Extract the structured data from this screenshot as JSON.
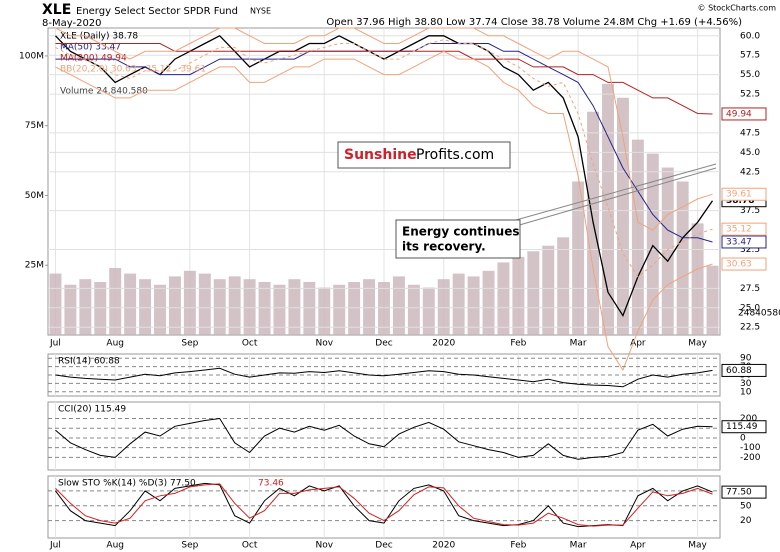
{
  "header": {
    "symbol": "XLE",
    "name": "Energy Select Sector SPDR Fund",
    "exchange": "NYSE",
    "date": "8-May-2020",
    "quote": "Open 37.96 High 38.80 Low 37.74 Close 38.78 Volume 24.8M Chg +1.69 (+4.56%)",
    "copyright": "© StockCharts.com"
  },
  "logo": [
    "Sunshine",
    "Profits.com"
  ],
  "annotation": [
    "Energy continues",
    "its recovery."
  ],
  "chart_data": [
    {
      "type": "line",
      "grid": true,
      "categories": [
        "Jul",
        null,
        null,
        null,
        "Aug",
        null,
        null,
        null,
        null,
        "Sep",
        null,
        null,
        null,
        "Oct",
        null,
        null,
        null,
        null,
        "Nov",
        null,
        null,
        null,
        "Dec",
        null,
        null,
        null,
        "2020",
        null,
        null,
        null,
        null,
        "Feb",
        null,
        null,
        null,
        "Mar",
        null,
        null,
        null,
        "Apr",
        null,
        null,
        null,
        "May",
        null
      ],
      "ylim": [
        21.5,
        61
      ],
      "yticks": [
        {
          "value": 60,
          "label": "60.0"
        },
        57.5,
        {
          "value": 55,
          "label": "55.0"
        },
        52.5,
        47.5,
        {
          "value": 45,
          "label": "45.0"
        },
        42.5,
        37.5,
        32.5,
        27.5,
        {
          "value": 25,
          "label": "25.0"
        },
        22.5
      ],
      "series": [
        {
          "name": "XLE (Daily) 38.78",
          "color": "#000000",
          "values": [
            60,
            58,
            57,
            56,
            54,
            55,
            56,
            55,
            57,
            58,
            59,
            60,
            58,
            56,
            57,
            58,
            58,
            59,
            59,
            60,
            59,
            58,
            57,
            58,
            59,
            60,
            60,
            59,
            59,
            58,
            56,
            55,
            53,
            54,
            52,
            47,
            36,
            27,
            24,
            29,
            33,
            31,
            34,
            36,
            38.78
          ]
        },
        {
          "name": "MA(50) 33.47",
          "color": "#23238e",
          "values": [
            57,
            57,
            57,
            57,
            57,
            56,
            56,
            55,
            55,
            55,
            56,
            57,
            57,
            57,
            57,
            57,
            57,
            58,
            58,
            58,
            58,
            58,
            58,
            58,
            58,
            59,
            59,
            59,
            59,
            59,
            58,
            58,
            57,
            56,
            55,
            54,
            51,
            47,
            43,
            40,
            37,
            35,
            34,
            34,
            33.47
          ]
        },
        {
          "name": "MA(200) 49.94",
          "color": "#b22222",
          "values": [
            59,
            59,
            59,
            59,
            59,
            59,
            59,
            59,
            58,
            58,
            58,
            58,
            58,
            58,
            58,
            58,
            58,
            58,
            58,
            58,
            58,
            58,
            58,
            58,
            58,
            58,
            58,
            58,
            57,
            57,
            57,
            57,
            56,
            56,
            56,
            55,
            55,
            54,
            54,
            53,
            52,
            52,
            51,
            50,
            49.94
          ]
        },
        {
          "name": "BB(20,2.0) 30.63 - 35.12 - 39.61",
          "color": "#f2a27a",
          "values": [
            61,
            60,
            60,
            59,
            58,
            57,
            58,
            58,
            58,
            59,
            60,
            61,
            61,
            60,
            59,
            59,
            59,
            60,
            60,
            61,
            61,
            60,
            59,
            59,
            60,
            61,
            61,
            61,
            61,
            60,
            60,
            59,
            58,
            57,
            58,
            58,
            57,
            56,
            47,
            36,
            35,
            37,
            38,
            39,
            39.61
          ]
        },
        {
          "color": "#f2a27a",
          "dash": true,
          "values": [
            58.5,
            57.5,
            57,
            56,
            55,
            54.5,
            55.5,
            55.5,
            55.5,
            56.5,
            57.5,
            58.5,
            58.5,
            57,
            56.5,
            57,
            57.5,
            58,
            58.5,
            59,
            59,
            58,
            57,
            57,
            58,
            59,
            59.5,
            59,
            59,
            58,
            57,
            56,
            54.5,
            53.5,
            54,
            50,
            43.5,
            38,
            32,
            29,
            30.5,
            32.5,
            33.5,
            34.5,
            35.12
          ]
        },
        {
          "color": "#f2a27a",
          "values": [
            56,
            55,
            54,
            53,
            52,
            52,
            53,
            53,
            53,
            54,
            55,
            56,
            56,
            54,
            54,
            55,
            56,
            56,
            57,
            57,
            57,
            56,
            55,
            55,
            56,
            57,
            58,
            57,
            57,
            56,
            54,
            53,
            51,
            50,
            50,
            42,
            30,
            20,
            17,
            22,
            26,
            28,
            29,
            30,
            30.63
          ]
        }
      ]
    },
    {
      "type": "bar",
      "name": "Volume 24,840,580",
      "color": "#c9b4b8",
      "ylim": [
        0,
        110000000
      ],
      "yticks": [
        {
          "value": 25000000,
          "label": "25M"
        },
        {
          "value": 50000000,
          "label": "50M"
        },
        {
          "value": 75000000,
          "label": "75M"
        },
        {
          "value": 100000000,
          "label": "100M"
        }
      ],
      "values": [
        22000000,
        18000000,
        20000000,
        19000000,
        24000000,
        22000000,
        20000000,
        18000000,
        21000000,
        23000000,
        22000000,
        20000000,
        21000000,
        20000000,
        19000000,
        18000000,
        20000000,
        19000000,
        17000000,
        18000000,
        19000000,
        20000000,
        19000000,
        21000000,
        18000000,
        17000000,
        20000000,
        22000000,
        21000000,
        23000000,
        26000000,
        28000000,
        30000000,
        32000000,
        35000000,
        55000000,
        80000000,
        90000000,
        85000000,
        70000000,
        65000000,
        60000000,
        55000000,
        40000000,
        24840580
      ]
    },
    {
      "type": "line",
      "title": "RSI(14) 60.88",
      "ylim": [
        0,
        100
      ],
      "yticks": [
        90,
        70,
        50,
        30,
        10
      ],
      "series": [
        {
          "color": "#000000",
          "values": [
            50,
            45,
            42,
            40,
            38,
            45,
            52,
            48,
            55,
            58,
            62,
            66,
            52,
            45,
            50,
            55,
            54,
            58,
            56,
            60,
            55,
            50,
            48,
            52,
            56,
            60,
            58,
            52,
            50,
            46,
            42,
            38,
            34,
            40,
            32,
            28,
            26,
            25,
            22,
            40,
            50,
            45,
            52,
            55,
            60.88
          ]
        }
      ]
    },
    {
      "type": "line",
      "title": "CCI(20) 115.49",
      "ylim": [
        -330,
        370
      ],
      "yticks": [
        200,
        100,
        0,
        -100,
        -200
      ],
      "series": [
        {
          "color": "#000000",
          "values": [
            80,
            -50,
            -120,
            -180,
            -200,
            -60,
            60,
            20,
            120,
            150,
            180,
            200,
            -50,
            -150,
            20,
            100,
            60,
            120,
            80,
            130,
            20,
            -60,
            -90,
            40,
            110,
            160,
            90,
            -40,
            -80,
            -120,
            -150,
            -200,
            -180,
            -60,
            -180,
            -220,
            -200,
            -190,
            -150,
            80,
            140,
            20,
            90,
            120,
            115.49
          ]
        }
      ]
    },
    {
      "type": "line",
      "title": "Slow STO %K(14) %D(3) 77.50,",
      "title2": "73.46",
      "ylim": [
        -15,
        110
      ],
      "yticks": [
        80,
        50,
        20
      ],
      "series": [
        {
          "color": "#000000",
          "tag": "77.50",
          "values": [
            80,
            40,
            20,
            15,
            10,
            40,
            80,
            60,
            85,
            90,
            95,
            92,
            30,
            15,
            60,
            85,
            70,
            90,
            80,
            90,
            50,
            20,
            15,
            60,
            85,
            92,
            80,
            30,
            20,
            15,
            10,
            12,
            20,
            50,
            15,
            8,
            10,
            12,
            10,
            70,
            85,
            60,
            80,
            90,
            77.5
          ]
        },
        {
          "color": "#d62020",
          "values": [
            85,
            55,
            30,
            20,
            15,
            25,
            60,
            70,
            75,
            88,
            92,
            94,
            55,
            25,
            40,
            75,
            75,
            82,
            85,
            88,
            65,
            35,
            20,
            40,
            72,
            88,
            86,
            50,
            25,
            18,
            12,
            11,
            15,
            35,
            25,
            12,
            9,
            11,
            11,
            45,
            78,
            70,
            75,
            85,
            73.46
          ]
        }
      ]
    }
  ]
}
